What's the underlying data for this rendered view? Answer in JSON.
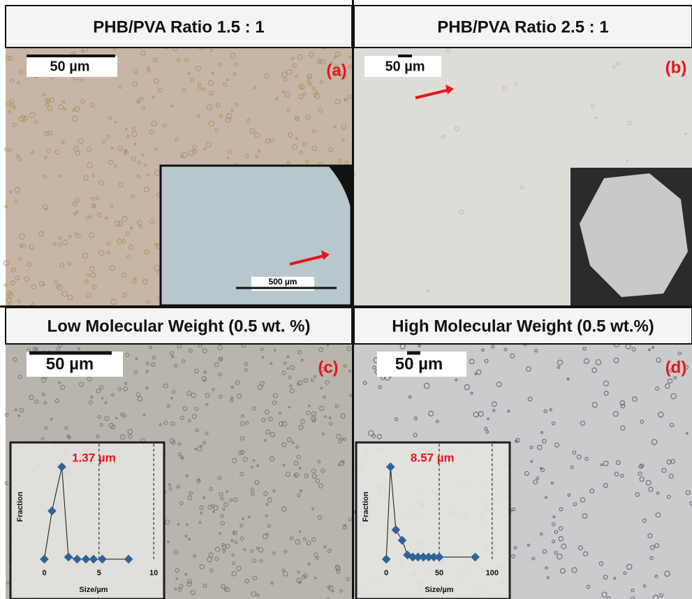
{
  "panels": [
    {
      "header": "PHB/PVA Ratio 1.5 : 1",
      "scale_bar": "50 µm",
      "label": "(a)",
      "inset_scale_bar": "500 µm"
    },
    {
      "header": "PHB/PVA Ratio 2.5 : 1",
      "scale_bar": "50 µm",
      "label": "(b)"
    },
    {
      "header": "Low Molecular Weight (0.5 wt. %)",
      "scale_bar": "50 µm",
      "label": "(c)"
    },
    {
      "header": "High Molecular Weight (0.5 wt.%)",
      "scale_bar": "50 µm",
      "label": "(d)"
    }
  ],
  "chart_data": [
    {
      "type": "scatter-line",
      "annotation": "1.37 µm",
      "x_label": "Size/µm",
      "y_label": "Fraction",
      "x": [
        0,
        0.7,
        1.6,
        2.2,
        3.0,
        3.8,
        4.5,
        5.3,
        7.7
      ],
      "values": [
        0,
        0.23,
        0.44,
        0.01,
        0,
        0,
        0,
        0,
        0
      ],
      "xlim": [
        -1.5,
        10.5
      ],
      "ylim": [
        0,
        0.5
      ],
      "xticks": [
        0,
        5,
        10
      ],
      "color": "#2f6398"
    },
    {
      "type": "scatter-line",
      "annotation": "8.57 µm",
      "x_label": "Size/µm",
      "y_label": "Fraction",
      "x": [
        0,
        4,
        9,
        15,
        20,
        25,
        30,
        35,
        40,
        45,
        50,
        84
      ],
      "values": [
        0,
        0.44,
        0.14,
        0.09,
        0.02,
        0.01,
        0.01,
        0.01,
        0.01,
        0.01,
        0.01,
        0.01
      ],
      "xlim": [
        -12,
        112
      ],
      "ylim": [
        0,
        0.5
      ],
      "xticks": [
        0,
        50,
        100
      ],
      "color": "#2f6398"
    }
  ]
}
